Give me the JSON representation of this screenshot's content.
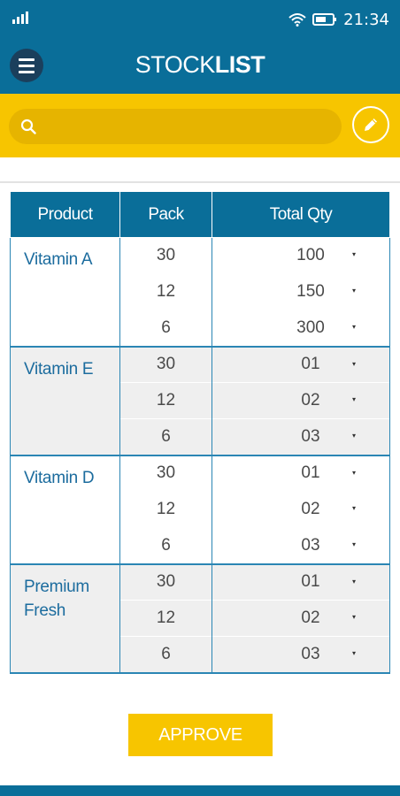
{
  "status_bar": {
    "time": "21:34",
    "icons": [
      "signal-icon",
      "wifi-icon",
      "battery-icon"
    ]
  },
  "header": {
    "title_part1": "STOCK",
    "title_part2": "LIST",
    "menu_icon": "hamburger-menu-icon"
  },
  "search": {
    "placeholder": "",
    "value": "",
    "icon": "search-icon",
    "edit_icon": "pencil-icon"
  },
  "table": {
    "columns": [
      "Product",
      "Pack",
      "Total Qty"
    ],
    "groups": [
      {
        "product": "Vitamin A",
        "rows": [
          {
            "pack": "30",
            "qty": "100"
          },
          {
            "pack": "12",
            "qty": "150"
          },
          {
            "pack": "6",
            "qty": "300"
          }
        ]
      },
      {
        "product": "Vitamin E",
        "rows": [
          {
            "pack": "30",
            "qty": "01"
          },
          {
            "pack": "12",
            "qty": "02"
          },
          {
            "pack": "6",
            "qty": "03"
          }
        ]
      },
      {
        "product": "Vitamin D",
        "rows": [
          {
            "pack": "30",
            "qty": "01"
          },
          {
            "pack": "12",
            "qty": "02"
          },
          {
            "pack": "6",
            "qty": "03"
          }
        ]
      },
      {
        "product": "Premium Fresh",
        "rows": [
          {
            "pack": "30",
            "qty": "01"
          },
          {
            "pack": "12",
            "qty": "02"
          },
          {
            "pack": "6",
            "qty": "03"
          }
        ]
      }
    ]
  },
  "caret_glyph": "▾",
  "actions": {
    "approve_label": "APPROVE"
  },
  "colors": {
    "primary": "#0a6e99",
    "accent": "#f7c500",
    "search_field": "#e6b400",
    "text_blue": "#1c6c9e"
  }
}
